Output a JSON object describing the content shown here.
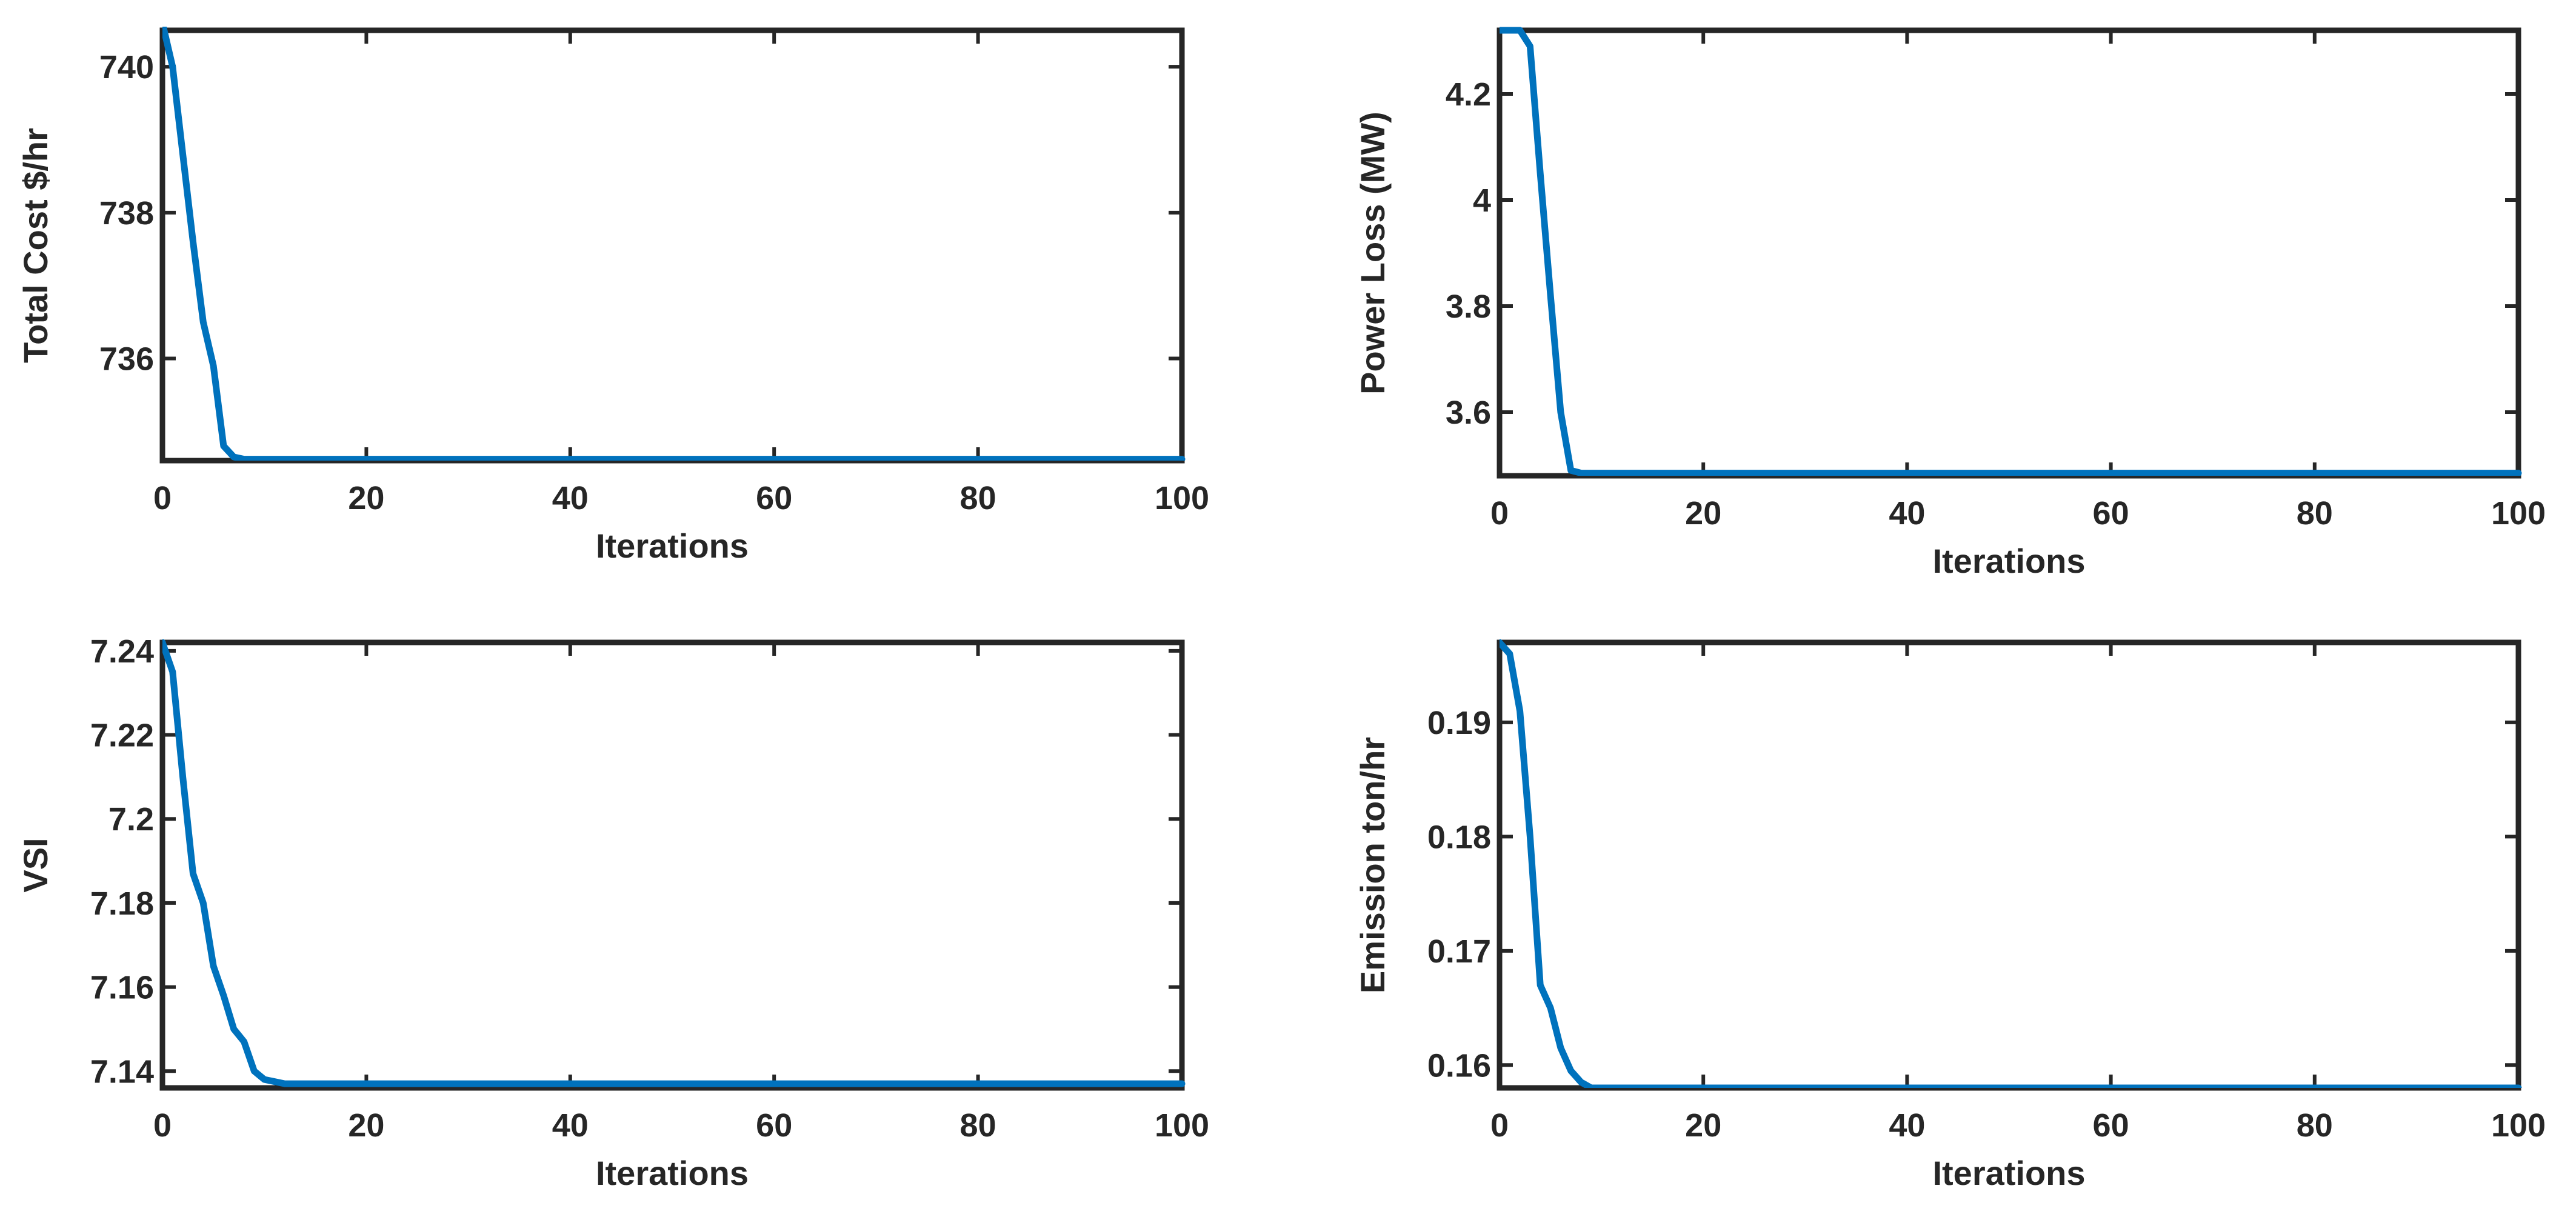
{
  "figure": {
    "background": "#ffffff",
    "axis_color": "#262626",
    "line_color": "#0072BD"
  },
  "chart_data": [
    {
      "type": "line",
      "title": "",
      "xlabel": "Iterations",
      "ylabel": "Total Cost $/hr",
      "xlim": [
        0,
        100
      ],
      "ylim": [
        734.6,
        740.5
      ],
      "xticks": [
        0,
        20,
        40,
        60,
        80,
        100
      ],
      "yticks": [
        736,
        738,
        740
      ],
      "xtick_labels": [
        "0",
        "20",
        "40",
        "60",
        "80",
        "100"
      ],
      "ytick_labels": [
        "736",
        "738",
        "740"
      ],
      "grid": false,
      "series": [
        {
          "x": [
            0,
            1,
            2,
            3,
            4,
            5,
            6,
            7,
            8,
            10,
            20,
            40,
            60,
            80,
            100
          ],
          "y": [
            740.6,
            740.0,
            738.8,
            737.6,
            736.5,
            735.9,
            734.8,
            734.65,
            734.62,
            734.62,
            734.62,
            734.62,
            734.62,
            734.62,
            734.62
          ]
        }
      ]
    },
    {
      "type": "line",
      "title": "",
      "xlabel": "Iterations",
      "ylabel": "Power Loss (MW)",
      "xlim": [
        0,
        100
      ],
      "ylim": [
        3.48,
        4.32
      ],
      "xticks": [
        0,
        20,
        40,
        60,
        80,
        100
      ],
      "yticks": [
        3.6,
        3.8,
        4.0,
        4.2
      ],
      "xtick_labels": [
        "0",
        "20",
        "40",
        "60",
        "80",
        "100"
      ],
      "ytick_labels": [
        "3.6",
        "3.8",
        "4",
        "4.2"
      ],
      "grid": false,
      "series": [
        {
          "x": [
            0,
            1,
            2,
            3,
            4,
            5,
            6,
            7,
            8,
            10,
            20,
            40,
            60,
            80,
            100
          ],
          "y": [
            4.32,
            4.32,
            4.32,
            4.29,
            4.05,
            3.82,
            3.6,
            3.49,
            3.485,
            3.485,
            3.485,
            3.485,
            3.485,
            3.485,
            3.485
          ]
        }
      ]
    },
    {
      "type": "line",
      "title": "",
      "xlabel": "Iterations",
      "ylabel": "VSI",
      "xlim": [
        0,
        100
      ],
      "ylim": [
        7.136,
        7.242
      ],
      "xticks": [
        0,
        20,
        40,
        60,
        80,
        100
      ],
      "yticks": [
        7.14,
        7.16,
        7.18,
        7.2,
        7.22,
        7.24
      ],
      "xtick_labels": [
        "0",
        "20",
        "40",
        "60",
        "80",
        "100"
      ],
      "ytick_labels": [
        "7.14",
        "7.16",
        "7.18",
        "7.2",
        "7.22",
        "7.24"
      ],
      "grid": false,
      "series": [
        {
          "x": [
            0,
            1,
            2,
            3,
            4,
            5,
            6,
            7,
            8,
            9,
            10,
            12,
            14,
            20,
            40,
            60,
            80,
            100
          ],
          "y": [
            7.242,
            7.235,
            7.21,
            7.187,
            7.18,
            7.165,
            7.158,
            7.15,
            7.147,
            7.14,
            7.138,
            7.137,
            7.137,
            7.137,
            7.137,
            7.137,
            7.137,
            7.137
          ]
        }
      ]
    },
    {
      "type": "line",
      "title": "",
      "xlabel": "Iterations",
      "ylabel": "Emission ton/hr",
      "xlim": [
        0,
        100
      ],
      "ylim": [
        0.158,
        0.197
      ],
      "xticks": [
        0,
        20,
        40,
        60,
        80,
        100
      ],
      "yticks": [
        0.16,
        0.17,
        0.18,
        0.19
      ],
      "xtick_labels": [
        "0",
        "20",
        "40",
        "60",
        "80",
        "100"
      ],
      "ytick_labels": [
        "0.16",
        "0.17",
        "0.18",
        "0.19"
      ],
      "grid": false,
      "series": [
        {
          "x": [
            0,
            1,
            2,
            3,
            4,
            5,
            6,
            7,
            8,
            9,
            10,
            20,
            40,
            60,
            80,
            100
          ],
          "y": [
            0.197,
            0.196,
            0.191,
            0.18,
            0.167,
            0.165,
            0.1615,
            0.1595,
            0.1585,
            0.158,
            0.158,
            0.158,
            0.158,
            0.158,
            0.158,
            0.158
          ]
        }
      ]
    }
  ]
}
